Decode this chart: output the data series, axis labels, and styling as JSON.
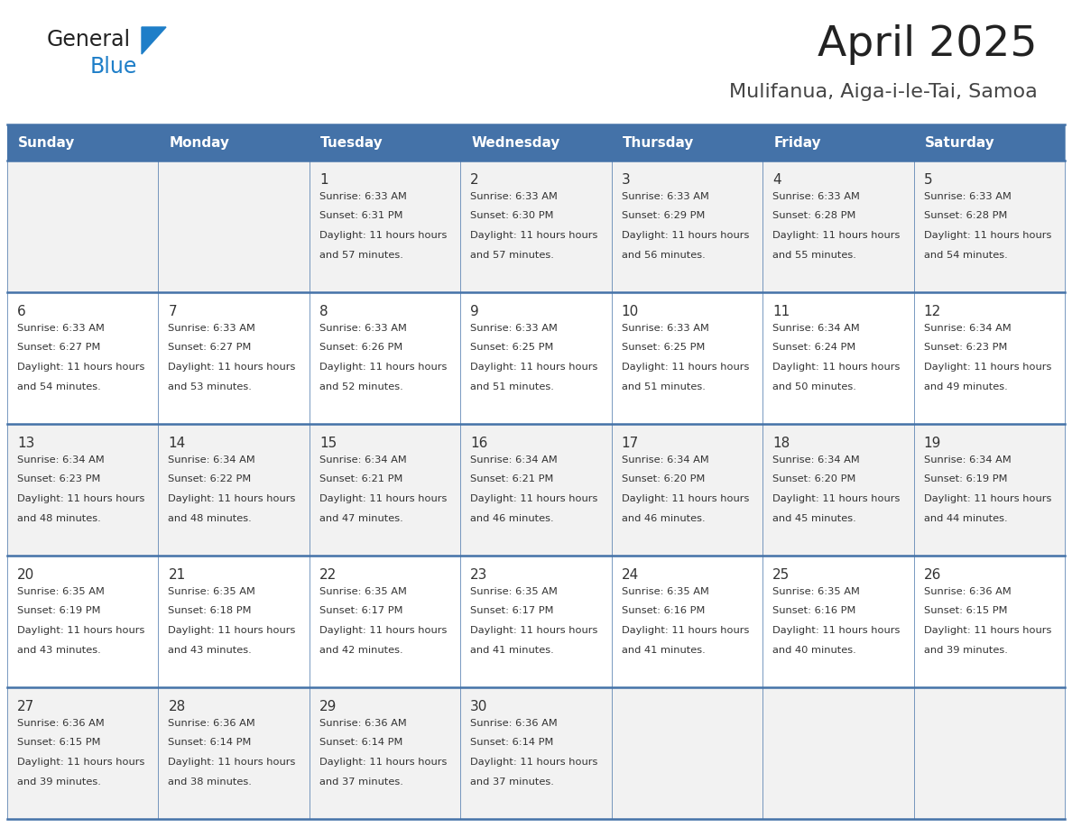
{
  "title": "April 2025",
  "subtitle": "Mulifanua, Aiga-i-le-Tai, Samoa",
  "header_bg_color": "#4472A8",
  "header_text_color": "#FFFFFF",
  "day_names": [
    "Sunday",
    "Monday",
    "Tuesday",
    "Wednesday",
    "Thursday",
    "Friday",
    "Saturday"
  ],
  "row_bg_colors": [
    "#F2F2F2",
    "#FFFFFF"
  ],
  "grid_line_color": "#4472A8",
  "text_color": "#333333",
  "title_color": "#222222",
  "subtitle_color": "#444444",
  "calendar_data": [
    [
      {
        "day": "",
        "sunrise": "",
        "sunset": "",
        "daylight": ""
      },
      {
        "day": "",
        "sunrise": "",
        "sunset": "",
        "daylight": ""
      },
      {
        "day": "1",
        "sunrise": "6:33 AM",
        "sunset": "6:31 PM",
        "daylight": "11 hours and 57 minutes."
      },
      {
        "day": "2",
        "sunrise": "6:33 AM",
        "sunset": "6:30 PM",
        "daylight": "11 hours and 57 minutes."
      },
      {
        "day": "3",
        "sunrise": "6:33 AM",
        "sunset": "6:29 PM",
        "daylight": "11 hours and 56 minutes."
      },
      {
        "day": "4",
        "sunrise": "6:33 AM",
        "sunset": "6:28 PM",
        "daylight": "11 hours and 55 minutes."
      },
      {
        "day": "5",
        "sunrise": "6:33 AM",
        "sunset": "6:28 PM",
        "daylight": "11 hours and 54 minutes."
      }
    ],
    [
      {
        "day": "6",
        "sunrise": "6:33 AM",
        "sunset": "6:27 PM",
        "daylight": "11 hours and 54 minutes."
      },
      {
        "day": "7",
        "sunrise": "6:33 AM",
        "sunset": "6:27 PM",
        "daylight": "11 hours and 53 minutes."
      },
      {
        "day": "8",
        "sunrise": "6:33 AM",
        "sunset": "6:26 PM",
        "daylight": "11 hours and 52 minutes."
      },
      {
        "day": "9",
        "sunrise": "6:33 AM",
        "sunset": "6:25 PM",
        "daylight": "11 hours and 51 minutes."
      },
      {
        "day": "10",
        "sunrise": "6:33 AM",
        "sunset": "6:25 PM",
        "daylight": "11 hours and 51 minutes."
      },
      {
        "day": "11",
        "sunrise": "6:34 AM",
        "sunset": "6:24 PM",
        "daylight": "11 hours and 50 minutes."
      },
      {
        "day": "12",
        "sunrise": "6:34 AM",
        "sunset": "6:23 PM",
        "daylight": "11 hours and 49 minutes."
      }
    ],
    [
      {
        "day": "13",
        "sunrise": "6:34 AM",
        "sunset": "6:23 PM",
        "daylight": "11 hours and 48 minutes."
      },
      {
        "day": "14",
        "sunrise": "6:34 AM",
        "sunset": "6:22 PM",
        "daylight": "11 hours and 48 minutes."
      },
      {
        "day": "15",
        "sunrise": "6:34 AM",
        "sunset": "6:21 PM",
        "daylight": "11 hours and 47 minutes."
      },
      {
        "day": "16",
        "sunrise": "6:34 AM",
        "sunset": "6:21 PM",
        "daylight": "11 hours and 46 minutes."
      },
      {
        "day": "17",
        "sunrise": "6:34 AM",
        "sunset": "6:20 PM",
        "daylight": "11 hours and 46 minutes."
      },
      {
        "day": "18",
        "sunrise": "6:34 AM",
        "sunset": "6:20 PM",
        "daylight": "11 hours and 45 minutes."
      },
      {
        "day": "19",
        "sunrise": "6:34 AM",
        "sunset": "6:19 PM",
        "daylight": "11 hours and 44 minutes."
      }
    ],
    [
      {
        "day": "20",
        "sunrise": "6:35 AM",
        "sunset": "6:19 PM",
        "daylight": "11 hours and 43 minutes."
      },
      {
        "day": "21",
        "sunrise": "6:35 AM",
        "sunset": "6:18 PM",
        "daylight": "11 hours and 43 minutes."
      },
      {
        "day": "22",
        "sunrise": "6:35 AM",
        "sunset": "6:17 PM",
        "daylight": "11 hours and 42 minutes."
      },
      {
        "day": "23",
        "sunrise": "6:35 AM",
        "sunset": "6:17 PM",
        "daylight": "11 hours and 41 minutes."
      },
      {
        "day": "24",
        "sunrise": "6:35 AM",
        "sunset": "6:16 PM",
        "daylight": "11 hours and 41 minutes."
      },
      {
        "day": "25",
        "sunrise": "6:35 AM",
        "sunset": "6:16 PM",
        "daylight": "11 hours and 40 minutes."
      },
      {
        "day": "26",
        "sunrise": "6:36 AM",
        "sunset": "6:15 PM",
        "daylight": "11 hours and 39 minutes."
      }
    ],
    [
      {
        "day": "27",
        "sunrise": "6:36 AM",
        "sunset": "6:15 PM",
        "daylight": "11 hours and 39 minutes."
      },
      {
        "day": "28",
        "sunrise": "6:36 AM",
        "sunset": "6:14 PM",
        "daylight": "11 hours and 38 minutes."
      },
      {
        "day": "29",
        "sunrise": "6:36 AM",
        "sunset": "6:14 PM",
        "daylight": "11 hours and 37 minutes."
      },
      {
        "day": "30",
        "sunrise": "6:36 AM",
        "sunset": "6:14 PM",
        "daylight": "11 hours and 37 minutes."
      },
      {
        "day": "",
        "sunrise": "",
        "sunset": "",
        "daylight": ""
      },
      {
        "day": "",
        "sunrise": "",
        "sunset": "",
        "daylight": ""
      },
      {
        "day": "",
        "sunrise": "",
        "sunset": "",
        "daylight": ""
      }
    ]
  ],
  "logo_text_general": "General",
  "logo_text_blue": "Blue",
  "logo_color_general": "#222222",
  "logo_color_blue": "#1E7EC8",
  "logo_triangle_color": "#1E7EC8"
}
